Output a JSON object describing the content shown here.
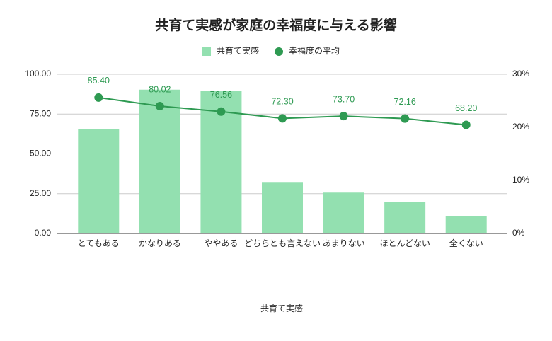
{
  "chart_data": {
    "type": "combo",
    "title": "共育て実感が家庭の幸福度に与える影響",
    "x_label": "共育て実感",
    "categories": [
      "とてもある",
      "かなりある",
      "ややある",
      "どちらとも言えない",
      "あまりない",
      "ほとんどない",
      "全くない"
    ],
    "series": [
      {
        "name": "共育て実感",
        "type": "bar",
        "color": "#93e0b0",
        "axis": "y2",
        "values": [
          19.6,
          27.1,
          26.9,
          9.7,
          7.7,
          5.9,
          3.3
        ]
      },
      {
        "name": "幸福度の平均",
        "type": "line",
        "color": "#2e9a52",
        "values": [
          85.4,
          80.02,
          76.56,
          72.3,
          73.7,
          72.16,
          68.2
        ],
        "value_labels": [
          "85.40",
          "80.02",
          "76.56",
          "72.30",
          "73.70",
          "72.16",
          "68.20"
        ]
      }
    ],
    "ylim": [
      0,
      100
    ],
    "yticks": [
      {
        "value": 0,
        "label": "0.00"
      },
      {
        "value": 25,
        "label": "25.00"
      },
      {
        "value": 50,
        "label": "50.00"
      },
      {
        "value": 75,
        "label": "75.00"
      },
      {
        "value": 100,
        "label": "100.00"
      }
    ],
    "y2lim": [
      0,
      30
    ],
    "y2ticks": [
      {
        "value": 0,
        "label": "0%"
      },
      {
        "value": 10,
        "label": "10%"
      },
      {
        "value": 20,
        "label": "20%"
      },
      {
        "value": 30,
        "label": "30%"
      }
    ],
    "grid": true,
    "legend": "top"
  }
}
